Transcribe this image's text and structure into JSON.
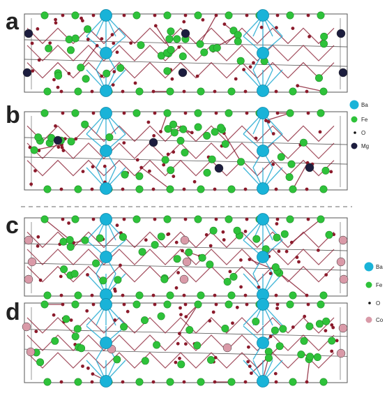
{
  "panels": [
    {
      "letter": "a",
      "dopant": "Mg"
    },
    {
      "letter": "b",
      "dopant": "Mg"
    },
    {
      "letter": "c",
      "dopant": "Co"
    },
    {
      "letter": "d",
      "dopant": "Co"
    }
  ],
  "legend_top": {
    "items": [
      {
        "label": "Ba",
        "color": "#19b3d8",
        "size": "large"
      },
      {
        "label": "Fe",
        "color": "#2ec23a",
        "size": "medium"
      },
      {
        "label": "O",
        "color": "#111111",
        "size": "small"
      },
      {
        "label": "Mg",
        "color": "#1c1d3e",
        "size": "medium"
      }
    ]
  },
  "legend_bottom": {
    "items": [
      {
        "label": "Ba",
        "color": "#19b3d8",
        "size": "large"
      },
      {
        "label": "Fe",
        "color": "#2ec23a",
        "size": "medium"
      },
      {
        "label": "O",
        "color": "#111111",
        "size": "small"
      },
      {
        "label": "Co",
        "color": "#d99aa8",
        "size": "medium"
      }
    ]
  },
  "colors": {
    "ba": "#19b3d8",
    "fe": "#2ec23a",
    "o": "#8b1a2b",
    "mg": "#1c1d3e",
    "co": "#d99aa8",
    "bond": "#8b2236",
    "ba_bond": "#19a6cf",
    "cell": "#555555",
    "divider": "#9a9a9a"
  }
}
